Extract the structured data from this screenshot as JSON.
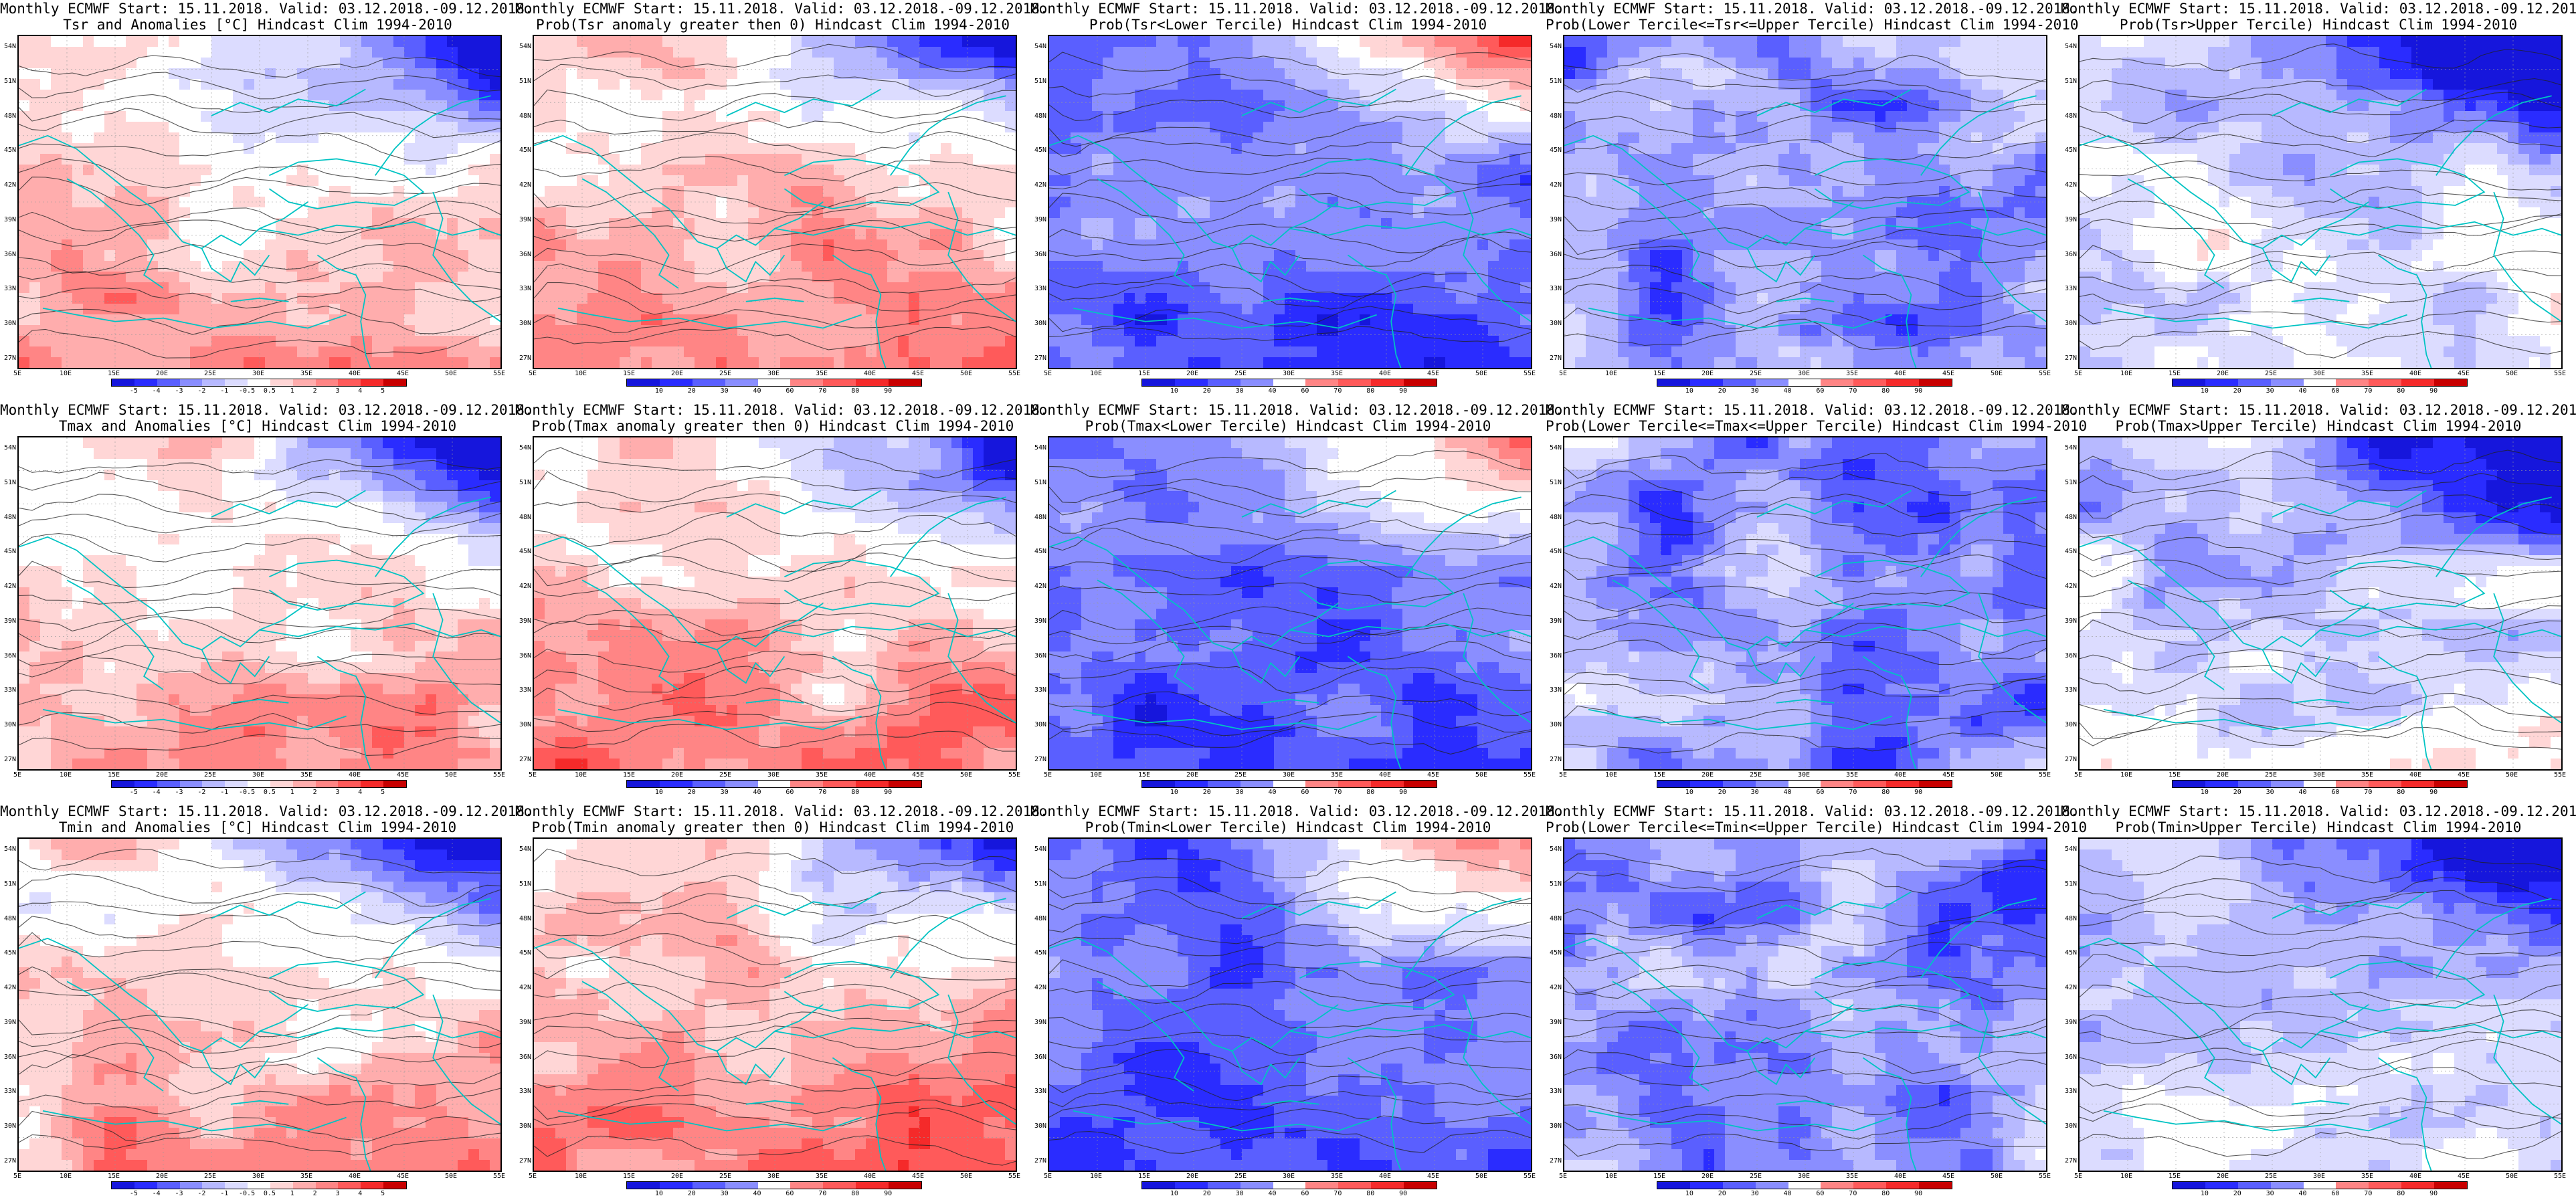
{
  "colors": {
    "white": "#ffffff",
    "coast": "#00c3c3",
    "contour": "#222222",
    "blues": [
      "#1616dc",
      "#2a2cff",
      "#5a5fff",
      "#8a8eff",
      "#b7b9ff",
      "#dcdcff"
    ],
    "reds": [
      "#ffd6d6",
      "#ffadad",
      "#ff8585",
      "#ff5a5a",
      "#f52a2a",
      "#c80000"
    ]
  },
  "axes": {
    "lat_labels": [
      "54N",
      "51N",
      "48N",
      "45N",
      "42N",
      "39N",
      "36N",
      "33N",
      "30N",
      "27N"
    ],
    "lon_labels": [
      "5E",
      "10E",
      "15E",
      "20E",
      "25E",
      "30E",
      "35E",
      "40E",
      "45E",
      "50E",
      "55E"
    ]
  },
  "colorbars": {
    "anomaly": [
      "-5",
      "-4",
      "-3",
      "-2",
      "-1",
      "-0.5",
      "0.5",
      "1",
      "2",
      "3",
      "4",
      "5"
    ],
    "probability": [
      "10",
      "20",
      "30",
      "40",
      "60",
      "70",
      "80",
      "90"
    ]
  },
  "panels": [
    {
      "row": 0,
      "col": 0,
      "title1": "Monthly ECMWF Start: 15.11.2018. Valid: 03.12.2018.-09.12.2018.",
      "title2": "Tsr and Anomalies [°C] Hindcast Clim 1994-2010",
      "cbar": "anomaly",
      "scheme": "anomaly"
    },
    {
      "row": 0,
      "col": 1,
      "title1": "Monthly ECMWF Start: 15.11.2018. Valid: 03.12.2018.-09.12.2018.",
      "title2": "Prob(Tsr anomaly greater then 0) Hindcast Clim 1994-2010",
      "cbar": "probability",
      "scheme": "warm"
    },
    {
      "row": 0,
      "col": 2,
      "title1": "Monthly ECMWF Start: 15.11.2018. Valid: 03.12.2018.-09.12.2018.",
      "title2": "Prob(Tsr<Lower Tercile) Hindcast Clim 1994-2010",
      "cbar": "probability",
      "scheme": "cold"
    },
    {
      "row": 0,
      "col": 3,
      "title1": "Monthly ECMWF Start: 15.11.2018. Valid: 03.12.2018.-09.12.2018.",
      "title2": "Prob(Lower Tercile<=Tsr<=Upper Tercile) Hindcast Clim 1994-2010",
      "cbar": "probability",
      "scheme": "mid"
    },
    {
      "row": 0,
      "col": 4,
      "title1": "Monthly ECMWF Start: 15.11.2018. Valid: 03.12.2018.-09.12.2018.",
      "title2": "Prob(Tsr>Upper Tercile) Hindcast Clim 1994-2010",
      "cbar": "probability",
      "scheme": "upper"
    },
    {
      "row": 1,
      "col": 0,
      "title1": "Monthly ECMWF Start: 15.11.2018. Valid: 03.12.2018.-09.12.2018.",
      "title2": "Tmax and Anomalies [°C] Hindcast Clim 1994-2010",
      "cbar": "anomaly",
      "scheme": "anomaly"
    },
    {
      "row": 1,
      "col": 1,
      "title1": "Monthly ECMWF Start: 15.11.2018. Valid: 03.12.2018.-09.12.2018.",
      "title2": "Prob(Tmax anomaly greater then 0) Hindcast Clim 1994-2010",
      "cbar": "probability",
      "scheme": "warm"
    },
    {
      "row": 1,
      "col": 2,
      "title1": "Monthly ECMWF Start: 15.11.2018. Valid: 03.12.2018.-09.12.2018.",
      "title2": "Prob(Tmax<Lower Tercile) Hindcast Clim 1994-2010",
      "cbar": "probability",
      "scheme": "cold"
    },
    {
      "row": 1,
      "col": 3,
      "title1": "Monthly ECMWF Start: 15.11.2018. Valid: 03.12.2018.-09.12.2018.",
      "title2": "Prob(Lower Tercile<=Tmax<=Upper Tercile) Hindcast Clim 1994-2010",
      "cbar": "probability",
      "scheme": "mid"
    },
    {
      "row": 1,
      "col": 4,
      "title1": "Monthly ECMWF Start: 15.11.2018. Valid: 03.12.2018.-09.12.2018.",
      "title2": "Prob(Tmax>Upper Tercile) Hindcast Clim 1994-2010",
      "cbar": "probability",
      "scheme": "upper"
    },
    {
      "row": 2,
      "col": 0,
      "title1": "Monthly ECMWF Start: 15.11.2018. Valid: 03.12.2018.-09.12.2018.",
      "title2": "Tmin and Anomalies [°C] Hindcast Clim 1994-2010",
      "cbar": "anomaly",
      "scheme": "anomaly"
    },
    {
      "row": 2,
      "col": 1,
      "title1": "Monthly ECMWF Start: 15.11.2018. Valid: 03.12.2018.-09.12.2018.",
      "title2": "Prob(Tmin anomaly greater then 0) Hindcast Clim 1994-2010",
      "cbar": "probability",
      "scheme": "warm"
    },
    {
      "row": 2,
      "col": 2,
      "title1": "Monthly ECMWF Start: 15.11.2018. Valid: 03.12.2018.-09.12.2018.",
      "title2": "Prob(Tmin<Lower Tercile) Hindcast Clim 1994-2010",
      "cbar": "probability",
      "scheme": "cold"
    },
    {
      "row": 2,
      "col": 3,
      "title1": "Monthly ECMWF Start: 15.11.2018. Valid: 03.12.2018.-09.12.2018.",
      "title2": "Prob(Lower Tercile<=Tmin<=Upper Tercile) Hindcast Clim 1994-2010",
      "cbar": "probability",
      "scheme": "mid"
    },
    {
      "row": 2,
      "col": 4,
      "title1": "Monthly ECMWF Start: 15.11.2018. Valid: 03.12.2018.-09.12.2018.",
      "title2": "Prob(Tmin>Upper Tercile) Hindcast Clim 1994-2010",
      "cbar": "probability",
      "scheme": "upper"
    }
  ]
}
